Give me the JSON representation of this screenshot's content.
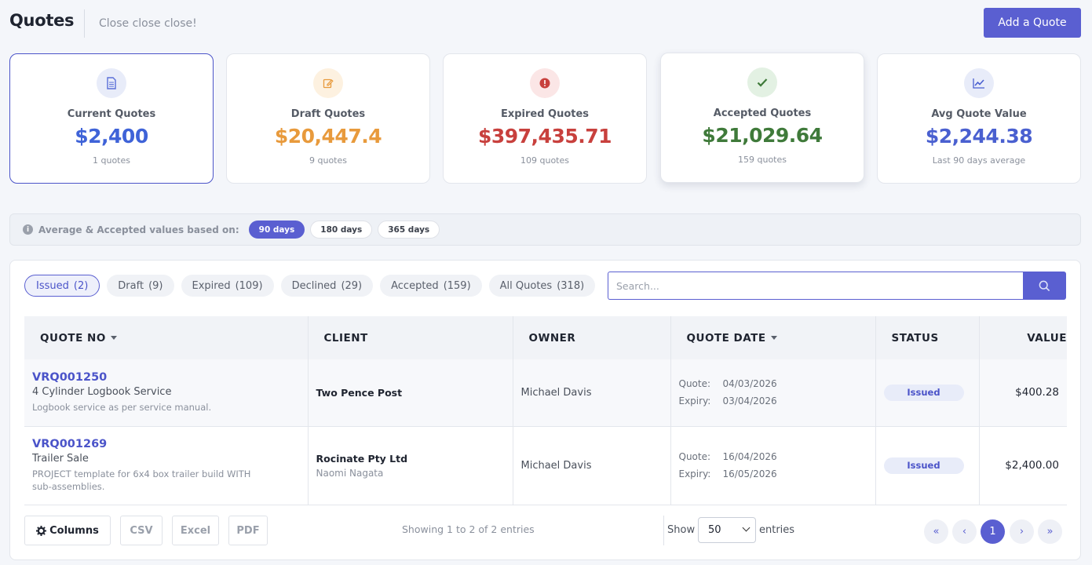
{
  "header": {
    "title": "Quotes",
    "subtitle": "Close close close!",
    "add_button": "Add a Quote"
  },
  "cards": [
    {
      "label": "Current Quotes",
      "value": "$2,400",
      "count": "1 quotes",
      "color": "#3f63d8",
      "icon": "document-icon"
    },
    {
      "label": "Draft Quotes",
      "value": "$20,447.4",
      "count": "9 quotes",
      "color": "#e89a3c",
      "icon": "edit-icon"
    },
    {
      "label": "Expired Quotes",
      "value": "$397,435.71",
      "count": "109 quotes",
      "color": "#c8403d",
      "icon": "alert-icon"
    },
    {
      "label": "Accepted Quotes",
      "value": "$21,029.64",
      "count": "159 quotes",
      "color": "#3f7a3a",
      "icon": "check-icon"
    },
    {
      "label": "Avg Quote Value",
      "value": "$2,244.38",
      "count": "Last 90 days average",
      "color": "#4a60d0",
      "icon": "trend-icon"
    }
  ],
  "day_filter": {
    "text": "Average & Accepted values based on:",
    "options": [
      "90 days",
      "180 days",
      "365 days"
    ],
    "selected": "90 days"
  },
  "tabs": [
    {
      "label": "Issued",
      "count": "(2)"
    },
    {
      "label": "Draft",
      "count": "(9)"
    },
    {
      "label": "Expired",
      "count": "(109)"
    },
    {
      "label": "Declined",
      "count": "(29)"
    },
    {
      "label": "Accepted",
      "count": "(159)"
    },
    {
      "label": "All Quotes",
      "count": "(318)"
    }
  ],
  "search": {
    "placeholder": "Search..."
  },
  "table": {
    "headers": [
      "QUOTE NO",
      "CLIENT",
      "OWNER",
      "QUOTE DATE",
      "STATUS",
      "VALUE"
    ],
    "rows": [
      {
        "quote_no": "VRQ001250",
        "title": "4 Cylinder Logbook Service",
        "desc": "Logbook service as per service manual.",
        "client": "Two Pence Post",
        "contact": "",
        "owner": "Michael Davis",
        "quote_label": "Quote:",
        "quote_date": "04/03/2026",
        "expiry_label": "Expiry:",
        "expiry_date": "03/04/2026",
        "status": "Issued",
        "value": "$400.28"
      },
      {
        "quote_no": "VRQ001269",
        "title": "Trailer Sale",
        "desc": "PROJECT template for 6x4 box trailer build WITH sub-assemblies.",
        "client": "Rocinate Pty Ltd",
        "contact": "Naomi Nagata",
        "owner": "Michael Davis",
        "quote_label": "Quote:",
        "quote_date": "16/04/2026",
        "expiry_label": "Expiry:",
        "expiry_date": "16/05/2026",
        "status": "Issued",
        "value": "$2,400.00"
      }
    ]
  },
  "footer": {
    "columns_btn": "Columns",
    "csv_btn": "CSV",
    "excel_btn": "Excel",
    "pdf_btn": "PDF",
    "showing": "Showing 1 to 2 of 2 entries",
    "show_label": "Show",
    "entries_value": "50",
    "entries_label": "entries",
    "current_page": "1"
  }
}
